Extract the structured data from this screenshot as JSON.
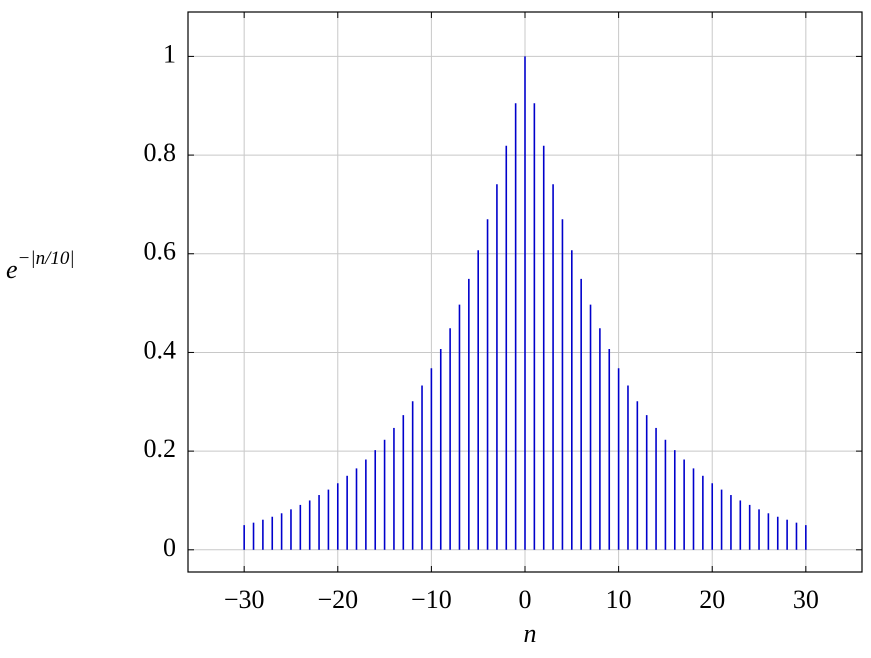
{
  "chart_data": {
    "type": "stem",
    "xlabel": "n",
    "ylabel": "e",
    "ylabel_exponent": "−|n/10|",
    "x": [
      -30,
      -29,
      -28,
      -27,
      -26,
      -25,
      -24,
      -23,
      -22,
      -21,
      -20,
      -19,
      -18,
      -17,
      -16,
      -15,
      -14,
      -13,
      -12,
      -11,
      -10,
      -9,
      -8,
      -7,
      -6,
      -5,
      -4,
      -3,
      -2,
      -1,
      0,
      1,
      2,
      3,
      4,
      5,
      6,
      7,
      8,
      9,
      10,
      11,
      12,
      13,
      14,
      15,
      16,
      17,
      18,
      19,
      20,
      21,
      22,
      23,
      24,
      25,
      26,
      27,
      28,
      29,
      30
    ],
    "values": [
      0.05,
      0.055,
      0.061,
      0.067,
      0.074,
      0.082,
      0.091,
      0.1,
      0.111,
      0.122,
      0.135,
      0.15,
      0.165,
      0.183,
      0.202,
      0.223,
      0.247,
      0.273,
      0.301,
      0.333,
      0.368,
      0.407,
      0.449,
      0.497,
      0.549,
      0.607,
      0.67,
      0.741,
      0.819,
      0.905,
      1,
      0.905,
      0.819,
      0.741,
      0.67,
      0.607,
      0.549,
      0.497,
      0.449,
      0.407,
      0.368,
      0.333,
      0.301,
      0.273,
      0.247,
      0.223,
      0.202,
      0.183,
      0.165,
      0.15,
      0.135,
      0.122,
      0.111,
      0.1,
      0.091,
      0.082,
      0.074,
      0.067,
      0.061,
      0.055,
      0.05
    ],
    "color": "#0000cc",
    "xlim": [
      -36,
      36
    ],
    "ylim": [
      -0.045,
      1.09
    ],
    "xticks": [
      {
        "value": -30,
        "label": "−30"
      },
      {
        "value": -20,
        "label": "−20"
      },
      {
        "value": -10,
        "label": "−10"
      },
      0,
      10,
      20,
      30
    ],
    "yticks": [
      0,
      0.2,
      0.4,
      0.6,
      0.8,
      1
    ],
    "grid": true
  }
}
